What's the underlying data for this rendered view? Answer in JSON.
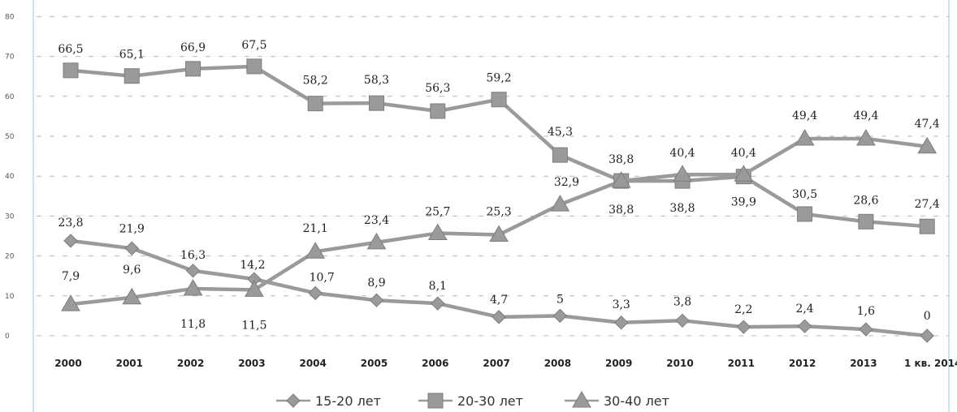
{
  "chart_data": {
    "type": "line",
    "title": "",
    "xlabel": "",
    "ylabel": "",
    "ylim": [
      0,
      80
    ],
    "yticks": [
      "0",
      "10",
      "20",
      "30",
      "40",
      "50",
      "60",
      "70",
      "80"
    ],
    "grid": true,
    "legend_position": "bottom",
    "categories": [
      "2000",
      "2001",
      "2002",
      "2003",
      "2004",
      "2005",
      "2006",
      "2007",
      "2008",
      "2009",
      "2010",
      "2011",
      "2012",
      "2013",
      "1 кв. 2014"
    ],
    "series": [
      {
        "name": "15-20 лет",
        "marker": "diamond",
        "color": "#9a9a9a",
        "values": [
          23.8,
          21.9,
          16.3,
          14.2,
          10.7,
          8.9,
          8.1,
          4.7,
          5,
          3.3,
          3.8,
          2.2,
          2.4,
          1.6,
          0
        ],
        "labels": [
          "23,8",
          "21,9",
          "16,3",
          "14,2",
          "10,7",
          "8,9",
          "8,1",
          "4,7",
          "5",
          "3,3",
          "3,8",
          "2,2",
          "2,4",
          "1,6",
          "0"
        ]
      },
      {
        "name": "20-30 лет",
        "marker": "square",
        "color": "#9a9a9a",
        "values": [
          66.5,
          65.1,
          66.9,
          67.5,
          58.2,
          58.3,
          56.3,
          59.2,
          45.3,
          38.8,
          38.8,
          39.9,
          30.5,
          28.6,
          27.4
        ],
        "labels": [
          "66,5",
          "65,1",
          "66,9",
          "67,5",
          "58,2",
          "58,3",
          "56,3",
          "59,2",
          "45,3",
          "38,8",
          "38,8",
          "39,9",
          "30,5",
          "28,6",
          "27,4"
        ]
      },
      {
        "name": "30-40 лет",
        "marker": "triangle",
        "color": "#9a9a9a",
        "values": [
          7.9,
          9.6,
          11.8,
          11.5,
          21.1,
          23.4,
          25.7,
          25.3,
          32.9,
          38.8,
          40.4,
          40.4,
          49.4,
          49.4,
          47.4
        ],
        "labels": [
          "7,9",
          "9,6",
          "11,8",
          "11,5",
          "21,1",
          "23,4",
          "25,7",
          "25,3",
          "32,9",
          "38,8",
          "40,4",
          "40,4",
          "49,4",
          "49,4",
          "47,4"
        ]
      }
    ]
  }
}
